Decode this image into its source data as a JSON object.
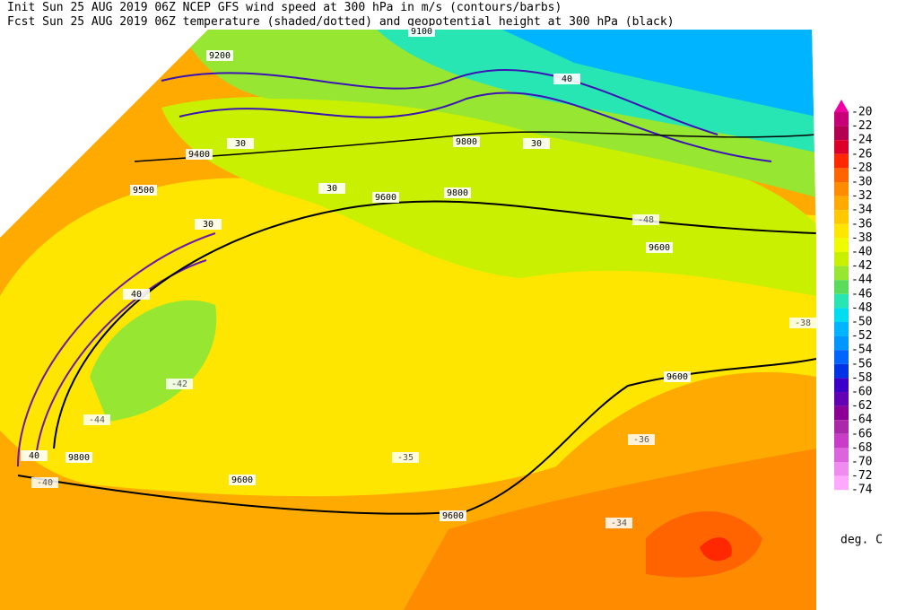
{
  "header": {
    "line1": "Init  Sun 25 AUG 2019 06Z  NCEP GFS wind speed at 300 hPa in m/s (contours/barbs)",
    "line2": "Fcst Sun 25 AUG 2019 06Z  temperature (shaded/dotted) and geopotential height at 300 hPa (black)"
  },
  "colorbar": {
    "unit": "deg. C",
    "entries": [
      {
        "value": -20,
        "color": "#f000a0"
      },
      {
        "value": -22,
        "color": "#c80078"
      },
      {
        "value": -24,
        "color": "#b40050"
      },
      {
        "value": -26,
        "color": "#dc0028"
      },
      {
        "value": -28,
        "color": "#ff2800"
      },
      {
        "value": -30,
        "color": "#ff6400"
      },
      {
        "value": -32,
        "color": "#ff8c00"
      },
      {
        "value": -34,
        "color": "#ffaa00"
      },
      {
        "value": -36,
        "color": "#ffc800"
      },
      {
        "value": -38,
        "color": "#ffe600"
      },
      {
        "value": -40,
        "color": "#f0fa00"
      },
      {
        "value": -42,
        "color": "#c8f000"
      },
      {
        "value": -44,
        "color": "#96e632"
      },
      {
        "value": -46,
        "color": "#5adc5a"
      },
      {
        "value": -48,
        "color": "#28e6b4"
      },
      {
        "value": -50,
        "color": "#00dcf0"
      },
      {
        "value": -52,
        "color": "#00b4ff"
      },
      {
        "value": -54,
        "color": "#0096ff"
      },
      {
        "value": -56,
        "color": "#0064ff"
      },
      {
        "value": -58,
        "color": "#0032e6"
      },
      {
        "value": -60,
        "color": "#3c00c8"
      },
      {
        "value": -62,
        "color": "#6400b4"
      },
      {
        "value": -64,
        "color": "#8c0096"
      },
      {
        "value": -66,
        "color": "#aa28aa"
      },
      {
        "value": -68,
        "color": "#c83cc8"
      },
      {
        "value": -70,
        "color": "#dc64dc"
      },
      {
        "value": -72,
        "color": "#f08cf0"
      },
      {
        "value": -74,
        "color": "#ffaaff"
      }
    ]
  },
  "map_labels": [
    "9100",
    "9200",
    "9400",
    "9500",
    "9600",
    "9600",
    "9600",
    "9600",
    "9600",
    "9800",
    "9800",
    "9800",
    "30",
    "30",
    "30",
    "30",
    "40",
    "40",
    "40",
    "-40",
    "-42",
    "-44",
    "-48",
    "-38",
    "-36",
    "-34",
    "-35"
  ]
}
